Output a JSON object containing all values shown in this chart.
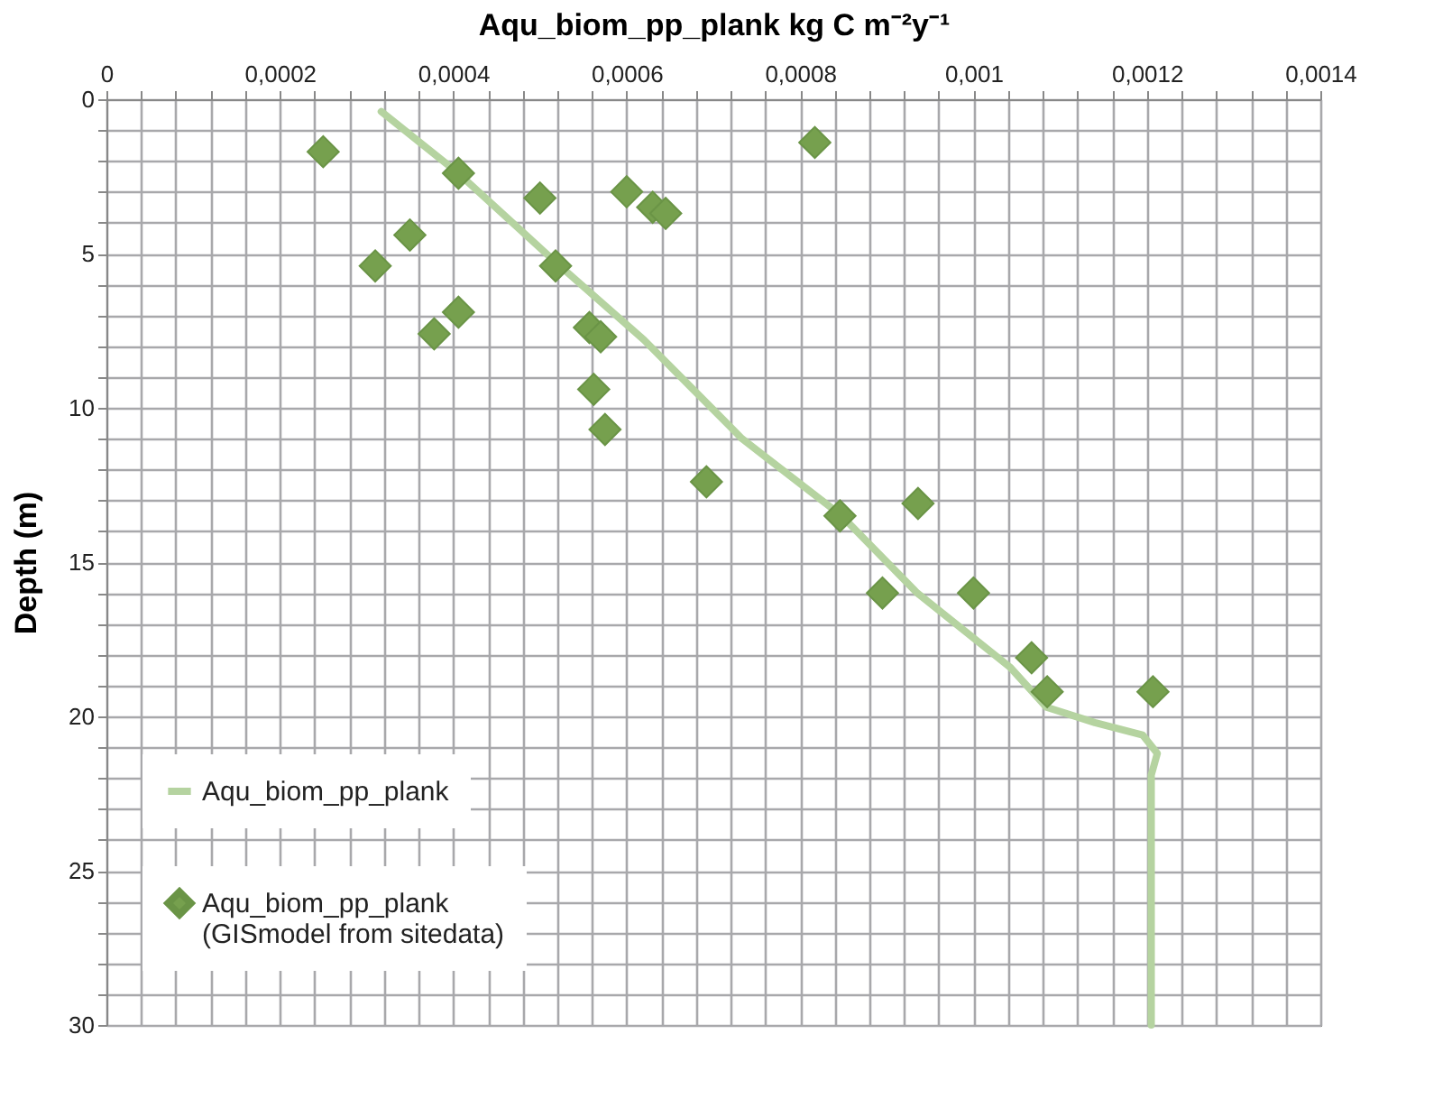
{
  "chart_data": {
    "type": "line",
    "xlabel": "Aqu_biom_pp_plank kg C m⁻²y⁻¹",
    "ylabel": "Depth (m)",
    "xlim": [
      0,
      0.0014
    ],
    "ylim": [
      30,
      0
    ],
    "xticks": [
      {
        "value": 0,
        "label": "0"
      },
      {
        "value": 4e-05,
        "label": null
      },
      {
        "value": 8e-05,
        "label": null
      },
      {
        "value": 0.00012,
        "label": null
      },
      {
        "value": 0.00016,
        "label": null
      },
      {
        "value": 0.0002,
        "label": "0,0002"
      },
      {
        "value": 0.00024,
        "label": null
      },
      {
        "value": 0.00028,
        "label": null
      },
      {
        "value": 0.00032,
        "label": null
      },
      {
        "value": 0.00036,
        "label": null
      },
      {
        "value": 0.0004,
        "label": "0,0004"
      },
      {
        "value": 0.00044,
        "label": null
      },
      {
        "value": 0.00048,
        "label": null
      },
      {
        "value": 0.00052,
        "label": null
      },
      {
        "value": 0.00056,
        "label": null
      },
      {
        "value": 0.0006,
        "label": "0,0006"
      },
      {
        "value": 0.00064,
        "label": null
      },
      {
        "value": 0.00068,
        "label": null
      },
      {
        "value": 0.00072,
        "label": null
      },
      {
        "value": 0.00076,
        "label": null
      },
      {
        "value": 0.0008,
        "label": "0,0008"
      },
      {
        "value": 0.00084,
        "label": null
      },
      {
        "value": 0.00088,
        "label": null
      },
      {
        "value": 0.00092,
        "label": null
      },
      {
        "value": 0.00096,
        "label": null
      },
      {
        "value": 0.001,
        "label": "0,001"
      },
      {
        "value": 0.00104,
        "label": null
      },
      {
        "value": 0.00108,
        "label": null
      },
      {
        "value": 0.00112,
        "label": null
      },
      {
        "value": 0.00116,
        "label": null
      },
      {
        "value": 0.0012,
        "label": "0,0012"
      },
      {
        "value": 0.00124,
        "label": null
      },
      {
        "value": 0.00128,
        "label": null
      },
      {
        "value": 0.00132,
        "label": null
      },
      {
        "value": 0.00136,
        "label": null
      },
      {
        "value": 0.0014,
        "label": "0,0014"
      }
    ],
    "yticks": [
      0,
      {
        "value": 1,
        "label": null
      },
      {
        "value": 2,
        "label": null
      },
      {
        "value": 3,
        "label": null
      },
      {
        "value": 4,
        "label": null
      },
      5,
      {
        "value": 6,
        "label": null
      },
      {
        "value": 7,
        "label": null
      },
      {
        "value": 8,
        "label": null
      },
      {
        "value": 9,
        "label": null
      },
      10,
      {
        "value": 11,
        "label": null
      },
      {
        "value": 12,
        "label": null
      },
      {
        "value": 13,
        "label": null
      },
      {
        "value": 14,
        "label": null
      },
      15,
      {
        "value": 16,
        "label": null
      },
      {
        "value": 17,
        "label": null
      },
      {
        "value": 18,
        "label": null
      },
      {
        "value": 19,
        "label": null
      },
      20,
      {
        "value": 21,
        "label": null
      },
      {
        "value": 22,
        "label": null
      },
      {
        "value": 23,
        "label": null
      },
      {
        "value": 24,
        "label": null
      },
      25,
      {
        "value": 26,
        "label": null
      },
      {
        "value": 27,
        "label": null
      },
      {
        "value": 28,
        "label": null
      },
      {
        "value": 29,
        "label": null
      },
      30
    ],
    "grid": true,
    "legend": "bottom left",
    "series": [
      {
        "name": "Aqu_biom_pp_plank",
        "type": "line",
        "color": "#b5d3a0",
        "marker": "none",
        "line_style": "solid",
        "x": [
          0.000317,
          0.000406,
          0.000515,
          0.00062,
          0.000719,
          0.000733,
          0.000848,
          0.000935,
          0.001042,
          0.001084,
          0.00114,
          0.001195,
          0.001212,
          0.001205,
          0.001205
        ],
        "values": [
          0.4,
          2.4,
          5.2,
          7.8,
          10.6,
          11.0,
          13.5,
          16.0,
          18.4,
          19.7,
          20.2,
          20.6,
          21.2,
          21.9,
          30
        ]
      },
      {
        "name": "Aqu_biom_pp_plank\n(GISmodel from sitedata)",
        "type": "scatter",
        "color": "#76a04e",
        "marker": "diamond",
        "x": [
          0.00025,
          0.000406,
          0.0005,
          0.0006,
          0.00063,
          0.000645,
          0.00035,
          0.00031,
          0.000518,
          0.000406,
          0.000378,
          0.000557,
          0.00057,
          0.000562,
          0.000575,
          0.000817,
          0.000692,
          0.000846,
          0.000936,
          0.000895,
          0.001,
          0.001067,
          0.001085,
          0.001207
        ],
        "values": [
          1.7,
          2.4,
          3.2,
          3.0,
          3.5,
          3.7,
          4.4,
          5.4,
          5.4,
          6.9,
          7.6,
          7.4,
          7.7,
          9.4,
          10.7,
          1.4,
          12.4,
          13.5,
          13.1,
          16.0,
          16.0,
          18.1,
          19.2,
          19.2
        ]
      }
    ]
  }
}
